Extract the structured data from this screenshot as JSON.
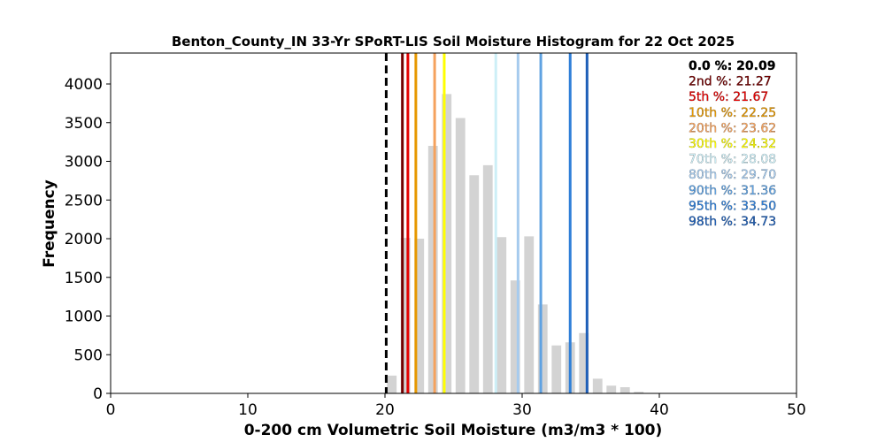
{
  "chart_data": {
    "type": "bar",
    "title": "Benton_County_IN 33-Yr SPoRT-LIS Soil Moisture Histogram for 22 Oct 2025",
    "xlabel": "0-200 cm Volumetric Soil Moisture (m3/m3 * 100)",
    "ylabel": "Frequency",
    "xlim": [
      0,
      50
    ],
    "ylim": [
      0,
      4400
    ],
    "xticks": [
      0,
      10,
      20,
      30,
      40,
      50
    ],
    "yticks": [
      0,
      500,
      1000,
      1500,
      2000,
      2500,
      3000,
      3500,
      4000
    ],
    "grid": false,
    "bar_color": "#d3d3d3",
    "bar_width": 0.7,
    "bars": [
      {
        "x": 20.5,
        "value": 230
      },
      {
        "x": 21.5,
        "value": 2010
      },
      {
        "x": 22.5,
        "value": 2000
      },
      {
        "x": 23.5,
        "value": 3200
      },
      {
        "x": 24.5,
        "value": 3870
      },
      {
        "x": 25.5,
        "value": 3560
      },
      {
        "x": 26.5,
        "value": 2820
      },
      {
        "x": 27.5,
        "value": 2950
      },
      {
        "x": 28.5,
        "value": 2020
      },
      {
        "x": 29.5,
        "value": 1460
      },
      {
        "x": 30.5,
        "value": 2030
      },
      {
        "x": 31.5,
        "value": 1150
      },
      {
        "x": 32.5,
        "value": 620
      },
      {
        "x": 33.5,
        "value": 660
      },
      {
        "x": 34.5,
        "value": 780
      },
      {
        "x": 35.5,
        "value": 190
      },
      {
        "x": 36.5,
        "value": 100
      },
      {
        "x": 37.5,
        "value": 80
      },
      {
        "x": 38.5,
        "value": 20
      }
    ],
    "current_value": {
      "value": 20.09,
      "color": "#000000",
      "style": "dashed"
    },
    "percentiles": [
      {
        "label": "0.0 %: 20.09",
        "value": 20.09,
        "color": "#000000",
        "line": false
      },
      {
        "label": "2nd %: 21.27",
        "value": 21.27,
        "color": "#730000",
        "line": true
      },
      {
        "label": "5th %: 21.67",
        "value": 21.67,
        "color": "#e60000",
        "line": true
      },
      {
        "label": "10th %: 22.25",
        "value": 22.25,
        "color": "#e69800",
        "line": true
      },
      {
        "label": "20th %: 23.62",
        "value": 23.62,
        "color": "#f5a25d",
        "line": true
      },
      {
        "label": "30th %: 24.32",
        "value": 24.32,
        "color": "#ffff00",
        "line": true
      },
      {
        "label": "70th %: 28.08",
        "value": 28.08,
        "color": "#cdeff7",
        "line": true
      },
      {
        "label": "80th %: 29.70",
        "value": 29.7,
        "color": "#a6cbee",
        "line": true
      },
      {
        "label": "90th %: 31.36",
        "value": 31.36,
        "color": "#5fa2e2",
        "line": true
      },
      {
        "label": "95th %: 33.50",
        "value": 33.5,
        "color": "#2f7fd8",
        "line": true
      },
      {
        "label": "98th %: 34.73",
        "value": 34.73,
        "color": "#1e5fb8",
        "line": true
      }
    ],
    "legend_position": "top-right"
  }
}
